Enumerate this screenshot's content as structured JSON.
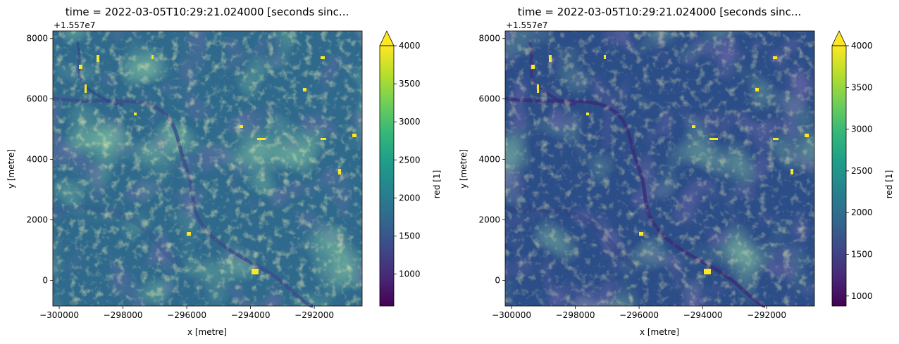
{
  "chart_data": [
    {
      "type": "heatmap",
      "title": "time = 2022-03-05T10:29:21.024000 [seconds sinc...",
      "xlabel": "x [metre]",
      "ylabel": "y [metre]",
      "offset_label": "+1.557e7",
      "xlim": [
        -300200,
        -290500
      ],
      "ylim": [
        -850,
        8250
      ],
      "x_ticks": [
        {
          "value": -300000,
          "label": "−300000"
        },
        {
          "value": -298000,
          "label": "−298000"
        },
        {
          "value": -296000,
          "label": "−296000"
        },
        {
          "value": -294000,
          "label": "−294000"
        },
        {
          "value": -292000,
          "label": "−292000"
        }
      ],
      "y_ticks": [
        {
          "value": 0,
          "label": "0"
        },
        {
          "value": 2000,
          "label": "2000"
        },
        {
          "value": 4000,
          "label": "4000"
        },
        {
          "value": 6000,
          "label": "6000"
        },
        {
          "value": 8000,
          "label": "8000"
        }
      ],
      "colorbar": {
        "label": "red [1]",
        "vmin": 580,
        "vmax": 4000,
        "extend": "max",
        "ticks": [
          {
            "value": 1000,
            "label": "1000"
          },
          {
            "value": 1500,
            "label": "1500"
          },
          {
            "value": 2000,
            "label": "2000"
          },
          {
            "value": 2500,
            "label": "2500"
          },
          {
            "value": 3000,
            "label": "3000"
          },
          {
            "value": 3500,
            "label": "3500"
          },
          {
            "value": 4000,
            "label": "4000"
          }
        ]
      },
      "colormap": "viridis",
      "data_summary": {
        "typical_value": 1650,
        "bright_features_value": 4000
      }
    },
    {
      "type": "heatmap",
      "title": "time = 2022-03-05T10:29:21.024000 [seconds sinc...",
      "xlabel": "x [metre]",
      "ylabel": "y [metre]",
      "offset_label": "+1.557e7",
      "xlim": [
        -300200,
        -290500
      ],
      "ylim": [
        -850,
        8250
      ],
      "x_ticks": [
        {
          "value": -300000,
          "label": "−300000"
        },
        {
          "value": -298000,
          "label": "−298000"
        },
        {
          "value": -296000,
          "label": "−296000"
        },
        {
          "value": -294000,
          "label": "−294000"
        },
        {
          "value": -292000,
          "label": "−292000"
        }
      ],
      "y_ticks": [
        {
          "value": 0,
          "label": "0"
        },
        {
          "value": 2000,
          "label": "2000"
        },
        {
          "value": 4000,
          "label": "4000"
        },
        {
          "value": 6000,
          "label": "6000"
        },
        {
          "value": 8000,
          "label": "8000"
        }
      ],
      "colorbar": {
        "label": "red [1]",
        "vmin": 880,
        "vmax": 4000,
        "extend": "max",
        "ticks": [
          {
            "value": 1000,
            "label": "1000"
          },
          {
            "value": 1500,
            "label": "1500"
          },
          {
            "value": 2000,
            "label": "2000"
          },
          {
            "value": 2500,
            "label": "2500"
          },
          {
            "value": 3000,
            "label": "3000"
          },
          {
            "value": 3500,
            "label": "3500"
          },
          {
            "value": 4000,
            "label": "4000"
          }
        ]
      },
      "colormap": "viridis",
      "data_summary": {
        "typical_value": 1500,
        "bright_features_value": 4000
      }
    }
  ]
}
